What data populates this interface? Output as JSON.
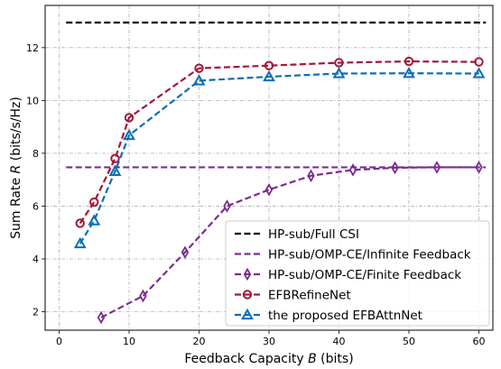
{
  "chart_data": {
    "type": "line",
    "xlabel": "Feedback Capacity B (bits)",
    "xlabel_plain": "Feedback Capacity ",
    "xlabel_var": "B",
    "xlabel_unit": " (bits)",
    "ylabel": "Sum Rate R (bits/s/Hz)",
    "ylabel_plain": "Sum Rate ",
    "ylabel_var": "R",
    "ylabel_unit": " (bits/s/Hz)",
    "xlim": [
      -2,
      62
    ],
    "ylim": [
      1.3,
      13.6
    ],
    "xticks": [
      0,
      10,
      20,
      30,
      40,
      50,
      60
    ],
    "yticks": [
      2,
      4,
      6,
      8,
      10,
      12
    ],
    "grid": true,
    "legend_position": "lower-right",
    "series": [
      {
        "name": "HP-sub/Full CSI",
        "color": "#000000",
        "marker": "none",
        "x": [
          1,
          61
        ],
        "y": [
          12.95,
          12.95
        ]
      },
      {
        "name": "HP-sub/OMP-CE/Infinite Feedback",
        "color": "#7b2d8e",
        "marker": "none",
        "x": [
          1,
          61
        ],
        "y": [
          7.47,
          7.47
        ]
      },
      {
        "name": "HP-sub/OMP-CE/Finite Feedback",
        "color": "#7b2d8e",
        "marker": "thin_diamond",
        "x": [
          6,
          12,
          18,
          24,
          30,
          36,
          42,
          48,
          54,
          60
        ],
        "y": [
          1.78,
          2.6,
          4.25,
          6.0,
          6.62,
          7.15,
          7.37,
          7.45,
          7.47,
          7.47
        ]
      },
      {
        "name": "EFBRefineNet",
        "color": "#a3173a",
        "marker": "circle",
        "x": [
          3,
          5,
          8,
          10,
          20,
          30,
          40,
          50,
          60
        ],
        "y": [
          5.35,
          6.15,
          7.8,
          9.35,
          11.22,
          11.32,
          11.43,
          11.48,
          11.46
        ]
      },
      {
        "name": "the proposed EFBAttnNet",
        "color": "#0a6eb4",
        "marker": "triangle",
        "x": [
          3,
          5,
          8,
          10,
          20,
          30,
          40,
          50,
          60
        ],
        "y": [
          4.58,
          5.45,
          7.32,
          8.68,
          10.75,
          10.9,
          11.02,
          11.03,
          11.02
        ]
      }
    ]
  }
}
